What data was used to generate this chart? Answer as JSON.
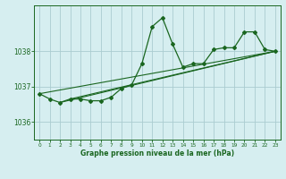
{
  "background_color": "#d6eef0",
  "plot_bg_color": "#d6eef0",
  "grid_color": "#aaccd0",
  "line_color": "#1a6620",
  "ylim": [
    1035.5,
    1039.3
  ],
  "xlim": [
    -0.5,
    23.5
  ],
  "yticks": [
    1036,
    1037,
    1038
  ],
  "xticks": [
    0,
    1,
    2,
    3,
    4,
    5,
    6,
    7,
    8,
    9,
    10,
    11,
    12,
    13,
    14,
    15,
    16,
    17,
    18,
    19,
    20,
    21,
    22,
    23
  ],
  "series1": [
    1036.8,
    1036.65,
    1036.55,
    1036.65,
    1036.65,
    1036.6,
    1036.6,
    1036.7,
    1036.95,
    1037.05,
    1037.65,
    1038.7,
    1038.95,
    1038.2,
    1037.55,
    1037.65,
    1037.65,
    1038.05,
    1038.1,
    1038.1,
    1038.55,
    1038.55,
    1038.05,
    1038.0
  ],
  "trend_lines": [
    [
      0,
      1036.8,
      23,
      1038.0
    ],
    [
      2,
      1036.55,
      23,
      1038.0
    ],
    [
      3,
      1036.65,
      23,
      1038.0
    ]
  ],
  "xlabel": "Graphe pression niveau de la mer (hPa)"
}
